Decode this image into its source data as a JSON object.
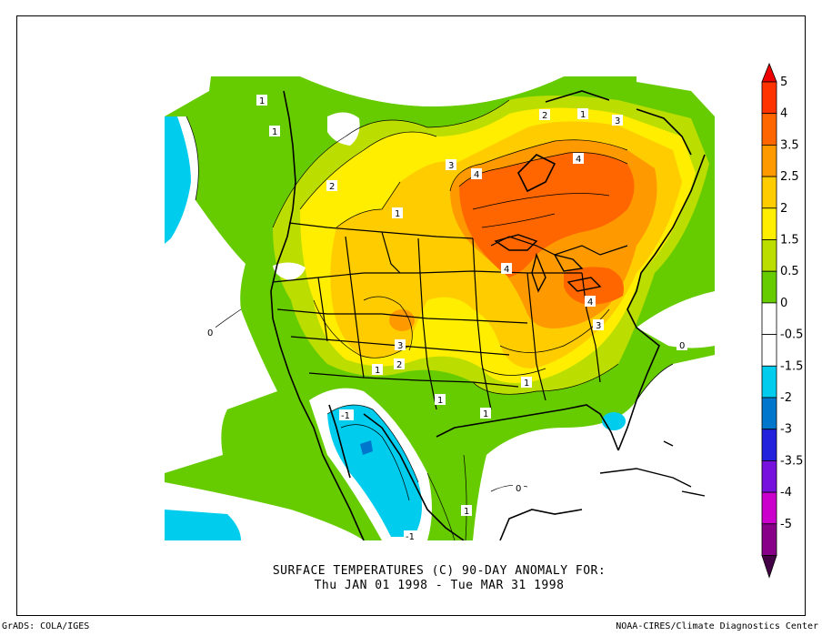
{
  "title": {
    "line1": "SURFACE TEMPERATURES (C)   90-DAY ANOMALY FOR:",
    "line2": "Thu JAN 01 1998 - Tue MAR 31 1998"
  },
  "footer": {
    "left": "GrADS: COLA/IGES",
    "right": "NOAA-CIRES/Climate Diagnostics Center"
  },
  "colorbar": {
    "levels": [
      {
        "label": "5",
        "color": "#ff3300"
      },
      {
        "label": "4",
        "color": "#ff6600"
      },
      {
        "label": "3.5",
        "color": "#ff9900"
      },
      {
        "label": "2.5",
        "color": "#ffcc00"
      },
      {
        "label": "2",
        "color": "#ffee00"
      },
      {
        "label": "1.5",
        "color": "#bbdd00"
      },
      {
        "label": "0.5",
        "color": "#66cc00"
      },
      {
        "label": "0",
        "color": "#ffffff"
      },
      {
        "label": "-0.5",
        "color": "#ffffff"
      },
      {
        "label": "-1.5",
        "color": "#00ccee"
      },
      {
        "label": "-2",
        "color": "#0077cc"
      },
      {
        "label": "-3",
        "color": "#2222dd"
      },
      {
        "label": "-3.5",
        "color": "#7711dd"
      },
      {
        "label": "-4",
        "color": "#cc00cc"
      },
      {
        "label": "-5",
        "color": "#880088"
      }
    ],
    "top_cap_color": "#ee0000",
    "bottom_cap_color": "#440044"
  },
  "map": {
    "fill_colors": {
      "green": "#66cc00",
      "lime": "#bbdd00",
      "yellow": "#ffcc00",
      "gold": "#ffee00",
      "orange": "#ff9900",
      "darkorange": "#ff6600",
      "cyan": "#00ccee",
      "blue": "#0077cc"
    },
    "contour_labels": [
      {
        "text": "1"
      },
      {
        "text": "1"
      },
      {
        "text": "1"
      },
      {
        "text": "2"
      },
      {
        "text": "1"
      },
      {
        "text": "2"
      },
      {
        "text": "3"
      },
      {
        "text": "3"
      },
      {
        "text": "4"
      },
      {
        "text": "4"
      },
      {
        "text": "4"
      },
      {
        "text": "4"
      },
      {
        "text": "3"
      },
      {
        "text": "3"
      },
      {
        "text": "2"
      },
      {
        "text": "1"
      },
      {
        "text": "1"
      },
      {
        "text": "1"
      },
      {
        "text": "1"
      },
      {
        "text": "0"
      },
      {
        "text": "0"
      },
      {
        "text": "-1"
      },
      {
        "text": "-1"
      },
      {
        "text": "1"
      },
      {
        "text": "0"
      }
    ]
  }
}
